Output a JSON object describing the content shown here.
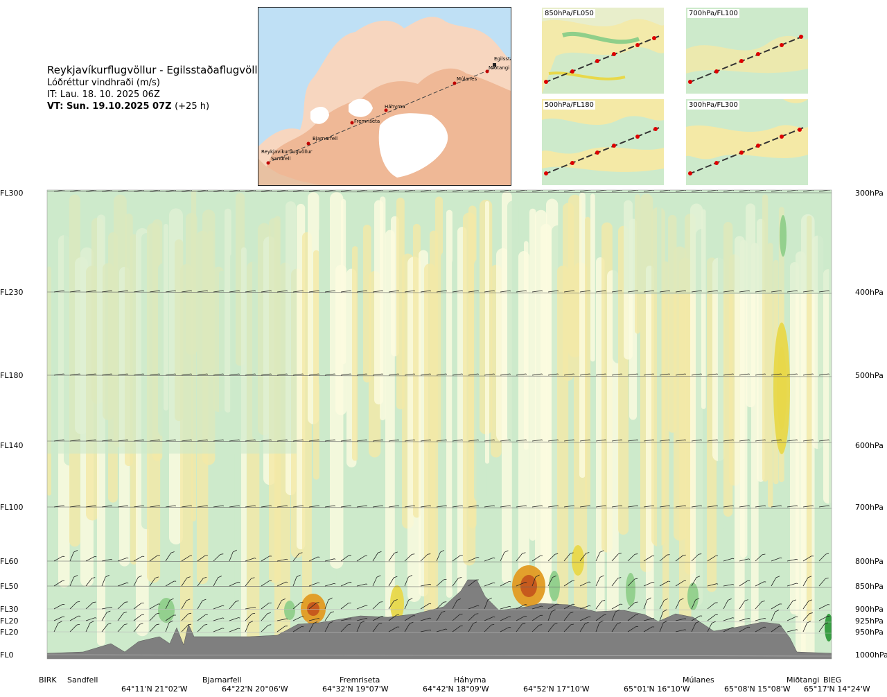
{
  "header": {
    "title": "Reykjavíkurflugvöllur - Egilsstaðaflugvöllur",
    "subtitle": "Lóðréttur vindhraði (m/s)",
    "issue_time": "IT: Lau. 18. 10. 2025 06Z",
    "valid_time": "VT: Sun. 19.10.2025 07Z",
    "lead_time": "(+25 h)"
  },
  "route_map": {
    "stations": [
      "Sandfell",
      "Reykjavíkurflugvöllur",
      "Bjarnarfell",
      "Fremriseta",
      "Háhyrna",
      "Múlanes",
      "Miðtangi",
      "Egilssta"
    ]
  },
  "mini_maps": [
    {
      "label": "850hPa/FL050"
    },
    {
      "label": "700hPa/FL100"
    },
    {
      "label": "500hPa/FL180"
    },
    {
      "label": "300hPa/FL300"
    }
  ],
  "chart_data": {
    "type": "heatmap",
    "variable": "Lóðréttur vindhraði (m/s)",
    "y_levels": [
      {
        "fl": "FL300",
        "hpa": "300hPa"
      },
      {
        "fl": "FL230",
        "hpa": "400hPa"
      },
      {
        "fl": "FL180",
        "hpa": "500hPa"
      },
      {
        "fl": "FL140",
        "hpa": "600hPa"
      },
      {
        "fl": "FL100",
        "hpa": "700hPa"
      },
      {
        "fl": "FL60",
        "hpa": "800hPa"
      },
      {
        "fl": "FL50",
        "hpa": "850hPa"
      },
      {
        "fl": "FL30",
        "hpa": "900hPa"
      },
      {
        "fl": "FL20",
        "hpa": "925hPa"
      },
      {
        "fl": "FL20",
        "hpa": "950hPa"
      },
      {
        "fl": "FL0",
        "hpa": "1000hPa"
      }
    ],
    "x_stations": [
      "BIRK",
      "Sandfell",
      "Bjarnarfell",
      "Fremriseta",
      "Háhyrna",
      "Múlanes",
      "Miðtangi",
      "BIEG"
    ],
    "x_coords": [
      "64°11'N 21°02'W",
      "64°22'N 20°06'W",
      "64°32'N 19°07'W",
      "64°42'N 18°09'W",
      "64°52'N 17°10'W",
      "65°01'N 16°10'W",
      "65°08'N 15°08'W",
      "65°17'N 14°24'W"
    ],
    "colors": {
      "strong_down": "#2e9a3a",
      "down": "#8fcf8a",
      "weak_down": "#cdeacb",
      "near_zero": "#fcfbe0",
      "weak_up": "#f4e9a6",
      "up": "#e8d84a",
      "strong_up": "#e29b22",
      "very_strong_up": "#c4561c",
      "terrain": "#7f7f7f"
    }
  }
}
